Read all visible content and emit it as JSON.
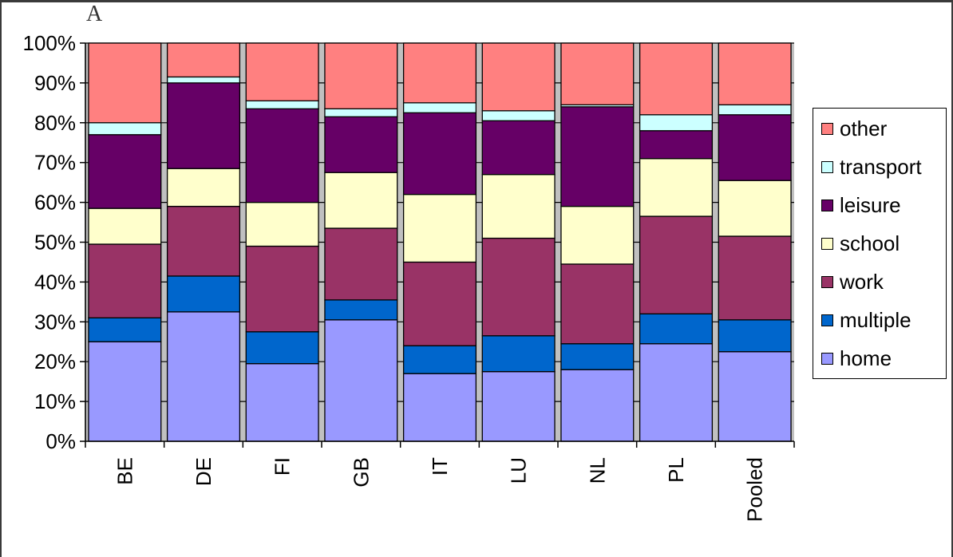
{
  "panel_label": "A",
  "chart_data": {
    "type": "bar",
    "stacked": true,
    "title": "",
    "xlabel": "",
    "ylabel": "",
    "ylim": [
      0,
      100
    ],
    "y_tick_format": "percent",
    "y_ticks": [
      "0%",
      "10%",
      "20%",
      "30%",
      "40%",
      "50%",
      "60%",
      "70%",
      "80%",
      "90%",
      "100%"
    ],
    "categories": [
      "BE",
      "DE",
      "FI",
      "GB",
      "IT",
      "LU",
      "NL",
      "PL",
      "Pooled"
    ],
    "legend_position": "right",
    "series": [
      {
        "name": "home",
        "color": "#9999FF",
        "values": [
          25,
          32.5,
          19.5,
          30.5,
          17,
          17.5,
          18,
          24.5,
          22.5
        ]
      },
      {
        "name": "multiple",
        "color": "#0066CC",
        "values": [
          6,
          9,
          8,
          5,
          7,
          9,
          6.5,
          7.5,
          8
        ]
      },
      {
        "name": "work",
        "color": "#993366",
        "values": [
          18.5,
          17.5,
          21.5,
          18,
          21,
          24.5,
          20,
          24.5,
          21
        ]
      },
      {
        "name": "school",
        "color": "#FFFFCC",
        "values": [
          9,
          9.5,
          11,
          14,
          17,
          16,
          14.5,
          14.5,
          14
        ]
      },
      {
        "name": "leisure",
        "color": "#660066",
        "values": [
          18.5,
          21.5,
          23.5,
          14,
          20.5,
          13.5,
          25,
          7,
          16.5
        ]
      },
      {
        "name": "transport",
        "color": "#CCFFFF",
        "values": [
          3,
          1.5,
          2,
          2,
          2.5,
          2.5,
          0.5,
          4,
          2.5
        ]
      },
      {
        "name": "other",
        "color": "#FF8080",
        "values": [
          20,
          8.5,
          14.5,
          16.5,
          15,
          17,
          15.5,
          18,
          15.5
        ]
      }
    ],
    "legend_order": [
      "other",
      "transport",
      "leisure",
      "school",
      "work",
      "multiple",
      "home"
    ]
  }
}
